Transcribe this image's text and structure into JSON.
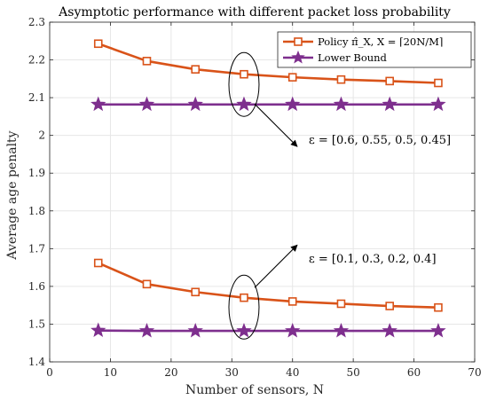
{
  "chart_data": {
    "type": "line",
    "title": "Asymptotic performance with different packet loss probability",
    "xlabel": "Number of sensors, N",
    "ylabel": "Average age penalty",
    "xlim": [
      0,
      70
    ],
    "ylim": [
      1.4,
      2.3
    ],
    "xticks": [
      0,
      10,
      20,
      30,
      40,
      50,
      60,
      70
    ],
    "yticks": [
      1.4,
      1.5,
      1.6,
      1.7,
      1.8,
      1.9,
      2,
      2.1,
      2.2,
      2.3
    ],
    "xtick_labels": [
      "0",
      "10",
      "20",
      "30",
      "40",
      "50",
      "60",
      "70"
    ],
    "ytick_labels": [
      "1.4",
      "1.5",
      "1.6",
      "1.7",
      "1.8",
      "1.9",
      "2",
      "2.1",
      "2.2",
      "2.3"
    ],
    "grid": true,
    "legend_placement": "top-right",
    "legend": [
      {
        "label": "Policy π̂_X, X = ⌈20N/M⌉",
        "color": "#D95319",
        "marker": "square"
      },
      {
        "label": "Lower Bound",
        "color": "#7E2F8E",
        "marker": "star"
      }
    ],
    "x": [
      8,
      16,
      24,
      32,
      40,
      48,
      56,
      64
    ],
    "series": [
      {
        "group": "upper",
        "kind": "policy",
        "values": [
          2.243,
          2.197,
          2.175,
          2.162,
          2.154,
          2.148,
          2.144,
          2.139
        ]
      },
      {
        "group": "upper",
        "kind": "bound",
        "values": [
          2.082,
          2.082,
          2.082,
          2.082,
          2.082,
          2.082,
          2.082,
          2.082
        ]
      },
      {
        "group": "lower",
        "kind": "policy",
        "values": [
          1.662,
          1.606,
          1.585,
          1.57,
          1.56,
          1.554,
          1.548,
          1.544
        ]
      },
      {
        "group": "lower",
        "kind": "bound",
        "values": [
          1.483,
          1.482,
          1.482,
          1.482,
          1.482,
          1.482,
          1.482,
          1.482
        ]
      }
    ],
    "annotations": [
      {
        "text": "ε = [0.6, 0.55, 0.5, 0.45]",
        "ellipse_center": [
          32,
          2.135
        ],
        "arrow_to": [
          36,
          2.02
        ]
      },
      {
        "text": "ε = [0.1, 0.3, 0.2, 0.4]",
        "ellipse_center": [
          32,
          1.545
        ],
        "arrow_to": [
          36,
          1.64
        ]
      }
    ],
    "colors": {
      "policy": "#D95319",
      "bound": "#7E2F8E",
      "grid": "#e6e6e6",
      "axis": "#262626"
    }
  }
}
